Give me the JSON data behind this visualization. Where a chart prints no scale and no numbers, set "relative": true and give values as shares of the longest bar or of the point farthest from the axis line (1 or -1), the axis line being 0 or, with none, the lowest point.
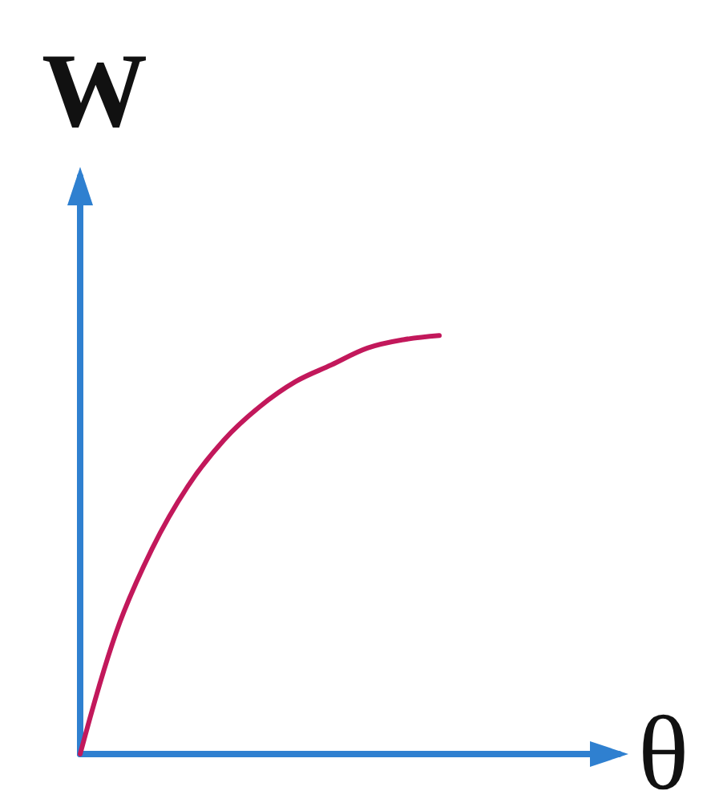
{
  "chart_data": {
    "type": "line",
    "xlabel": "θ",
    "ylabel": "W",
    "relative": true,
    "categories": [
      null,
      null,
      null,
      null,
      null,
      null,
      null,
      null,
      null,
      null,
      null,
      null,
      null,
      null,
      null,
      null
    ],
    "series": [
      {
        "color": "#c2185b",
        "values": [
          0,
          0.29,
          0.49,
          0.64,
          0.75,
          0.83,
          0.89,
          0.93,
          0.97,
          0.99,
          1,
          null,
          null,
          null,
          null,
          null
        ]
      }
    ]
  }
}
